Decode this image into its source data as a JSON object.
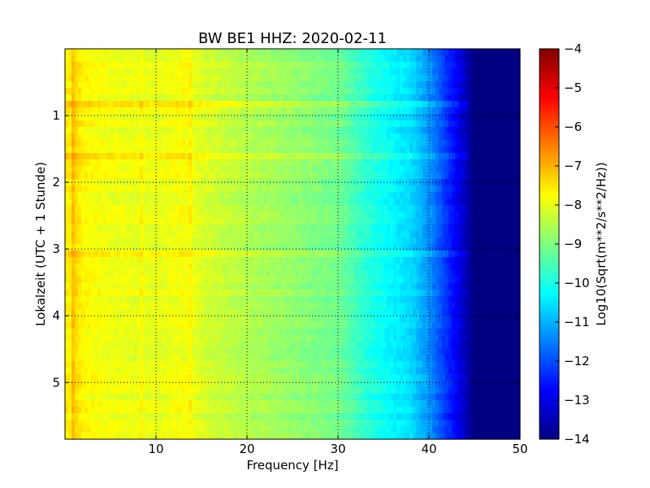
{
  "chart_data": {
    "type": "heatmap",
    "title": "BW BE1 HHZ: 2020-02-11",
    "xlabel": "Frequency [Hz]",
    "ylabel": "Lokalzeit (UTC + 1 Stunde)",
    "xlim": [
      0,
      50
    ],
    "ylim": [
      5.85,
      0
    ],
    "x_ticks": [
      10,
      20,
      30,
      40,
      50
    ],
    "y_ticks": [
      1,
      2,
      3,
      4,
      5
    ],
    "grid": true,
    "grid_style": "dotted",
    "colormap": "jet",
    "colorbar": {
      "label": "Log10(Sqrt(m**2/s**2/Hz))",
      "range": [
        -14,
        -4
      ],
      "ticks": [
        -4,
        -5,
        -6,
        -7,
        -8,
        -9,
        -10,
        -11,
        -12,
        -13,
        -14
      ]
    },
    "frequency_profile": {
      "x": [
        0.5,
        1,
        2,
        5,
        10,
        13,
        15,
        20,
        25,
        28,
        30,
        32,
        34,
        36,
        38,
        40,
        42,
        43,
        44,
        45,
        47,
        50
      ],
      "values": [
        -7.6,
        -7.3,
        -7.7,
        -7.9,
        -8.0,
        -7.8,
        -8.1,
        -8.5,
        -8.8,
        -9.0,
        -9.1,
        -9.6,
        -10.0,
        -10.3,
        -10.6,
        -11.3,
        -12.3,
        -12.8,
        -13.4,
        -14.0,
        -14.0,
        -14.0
      ]
    },
    "time_features": [
      {
        "y": 0.8,
        "value": -7.8
      },
      {
        "y": 1.6,
        "value": -7.4
      },
      {
        "y": 3.1,
        "value": -8.3
      }
    ],
    "frequency_features": [
      {
        "x": 1.0,
        "value": -7.2
      },
      {
        "x": 8.5,
        "value": -7.7
      },
      {
        "x": 13.8,
        "value": -7.5
      }
    ]
  }
}
